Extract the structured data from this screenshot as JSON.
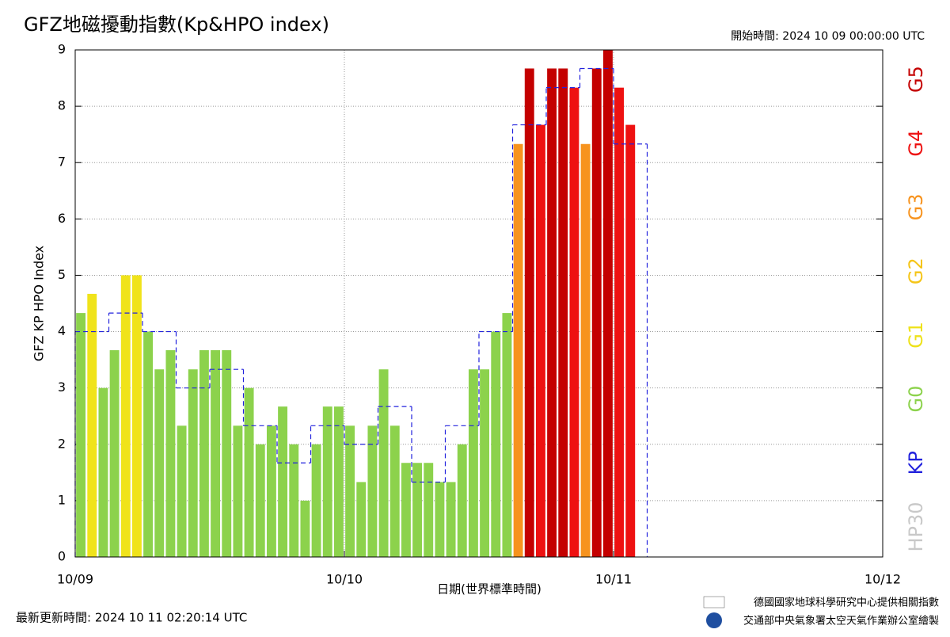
{
  "chart_data": {
    "type": "bar",
    "title": "GFZ地磁擾動指數(Kp&HPO index)",
    "subtitle": "開始時間:  2024 10 09 00:00:00 UTC",
    "x_label": "日期(世界標準時間)",
    "y_label": "GFZ KP HPO Index",
    "xlim": [
      0,
      72
    ],
    "xticks": [
      {
        "value": 0,
        "label": "10/09"
      },
      {
        "value": 24,
        "label": "10/10"
      },
      {
        "value": 48,
        "label": "10/11"
      },
      {
        "value": 72,
        "label": "10/12"
      }
    ],
    "ylim": [
      0,
      9
    ],
    "yticks": [
      0,
      1,
      2,
      3,
      4,
      5,
      6,
      7,
      8,
      9
    ],
    "grid": true,
    "series": [
      {
        "name": "HP30",
        "x": [
          0,
          1,
          2,
          3,
          4,
          5,
          6,
          7,
          8,
          9,
          10,
          11,
          12,
          13,
          14,
          15,
          16,
          17,
          18,
          19,
          20,
          21,
          22,
          23,
          24,
          25,
          26,
          27,
          28,
          29,
          30,
          31,
          32,
          33,
          34,
          35,
          36,
          37,
          38,
          39,
          40,
          41,
          42,
          43,
          44,
          45,
          46,
          47,
          48,
          49
        ],
        "values": [
          4.33,
          4.67,
          3.0,
          3.67,
          5.0,
          5.0,
          4.0,
          3.33,
          3.67,
          2.33,
          3.33,
          3.67,
          3.67,
          3.67,
          2.33,
          3.0,
          2.0,
          2.33,
          2.67,
          2.0,
          1.0,
          2.0,
          2.67,
          2.67,
          2.33,
          1.33,
          2.33,
          3.33,
          2.33,
          1.67,
          1.67,
          1.67,
          1.33,
          1.33,
          2.0,
          3.33,
          3.33,
          4.0,
          4.33,
          7.33,
          8.67,
          7.67,
          8.67,
          8.67,
          8.33,
          7.33,
          8.67,
          9.0,
          8.33,
          7.67
        ],
        "colors": [
          "#8cd24c",
          "#f0e31a",
          "#8cd24c",
          "#8cd24c",
          "#f0e31a",
          "#f0e31a",
          "#8cd24c",
          "#8cd24c",
          "#8cd24c",
          "#8cd24c",
          "#8cd24c",
          "#8cd24c",
          "#8cd24c",
          "#8cd24c",
          "#8cd24c",
          "#8cd24c",
          "#8cd24c",
          "#8cd24c",
          "#8cd24c",
          "#8cd24c",
          "#8cd24c",
          "#8cd24c",
          "#8cd24c",
          "#8cd24c",
          "#8cd24c",
          "#8cd24c",
          "#8cd24c",
          "#8cd24c",
          "#8cd24c",
          "#8cd24c",
          "#8cd24c",
          "#8cd24c",
          "#8cd24c",
          "#8cd24c",
          "#8cd24c",
          "#8cd24c",
          "#8cd24c",
          "#8cd24c",
          "#8cd24c",
          "#f7931e",
          "#c40000",
          "#ee1111",
          "#c40000",
          "#c40000",
          "#ee1111",
          "#f7931e",
          "#c40000",
          "#c40000",
          "#ee1111",
          "#ee1111"
        ]
      },
      {
        "name": "KP",
        "color": "#2222dd",
        "type": "step",
        "x": [
          0,
          3,
          6,
          9,
          12,
          15,
          18,
          21,
          24,
          27,
          30,
          33,
          36,
          39,
          42,
          45,
          48
        ],
        "values": [
          4.0,
          4.33,
          4.0,
          3.0,
          3.33,
          2.33,
          1.67,
          2.33,
          2.0,
          2.67,
          1.33,
          2.33,
          4.0,
          7.67,
          8.33,
          8.67,
          7.33
        ]
      }
    ],
    "legend": [
      {
        "label": "G5",
        "color": "#c40000"
      },
      {
        "label": "G4",
        "color": "#ee1111"
      },
      {
        "label": "G3",
        "color": "#f7931e"
      },
      {
        "label": "G2",
        "color": "#f5c518"
      },
      {
        "label": "G1",
        "color": "#eee21a"
      },
      {
        "label": "G0",
        "color": "#8cd24c"
      },
      {
        "label": "KP",
        "color": "#2222dd"
      },
      {
        "label": "HP30",
        "color": "#c8c8c8"
      }
    ],
    "footer": "最新更新時間:  2024 10 11 02:20:14 UTC",
    "credits": [
      "德國國家地球科學研究中心提供相關指數",
      "交通部中央氣象署太空天氣作業辦公室繪製"
    ]
  }
}
